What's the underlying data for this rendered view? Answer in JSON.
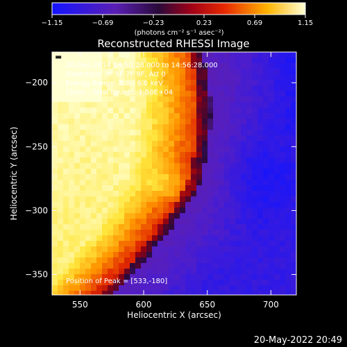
{
  "chart_data": {
    "type": "heatmap",
    "title": "Reconstructed RHESSI Image",
    "xlabel": "Heliocentric X (arcsec)",
    "ylabel": "Heliocentric Y (arcsec)",
    "xlim": [
      528,
      720
    ],
    "ylim": [
      -366,
      -176
    ],
    "x_ticks": [
      550,
      600,
      650,
      700
    ],
    "y_ticks": [
      -200,
      -250,
      -300,
      -350
    ],
    "colorbar": {
      "range": [
        -1.15,
        1.15
      ],
      "tick_values": [
        -1.15,
        -0.69,
        -0.23,
        0.23,
        0.69,
        1.15
      ],
      "tick_labels": [
        "−1.15",
        "−0.69",
        "−0.23",
        "0.23",
        "0.69",
        "1.15"
      ],
      "label": "(photons cm⁻² s⁻¹ asec⁻²)",
      "colormap": "rhessi-blue-purple-red-yellow-white"
    },
    "field_description": "bright emission filling the left side with a dark arc boundary near x≈640, faint purple/blue background on the right",
    "peak": {
      "x": 533,
      "y": -180
    },
    "annotations": [
      "20-Dec-2014 14:50:28.000 to 14:56:28.000",
      "Detectors: 3F 5F 7F 9F, Att 0",
      "Energy Range: 3.0 - 6.0 keV",
      "Clean , Total counts: 1.50E+04"
    ],
    "peak_label": "Position of Peak = [533,-180]"
  },
  "footer": {
    "date_stamp": "20-May-2022 20:49"
  }
}
